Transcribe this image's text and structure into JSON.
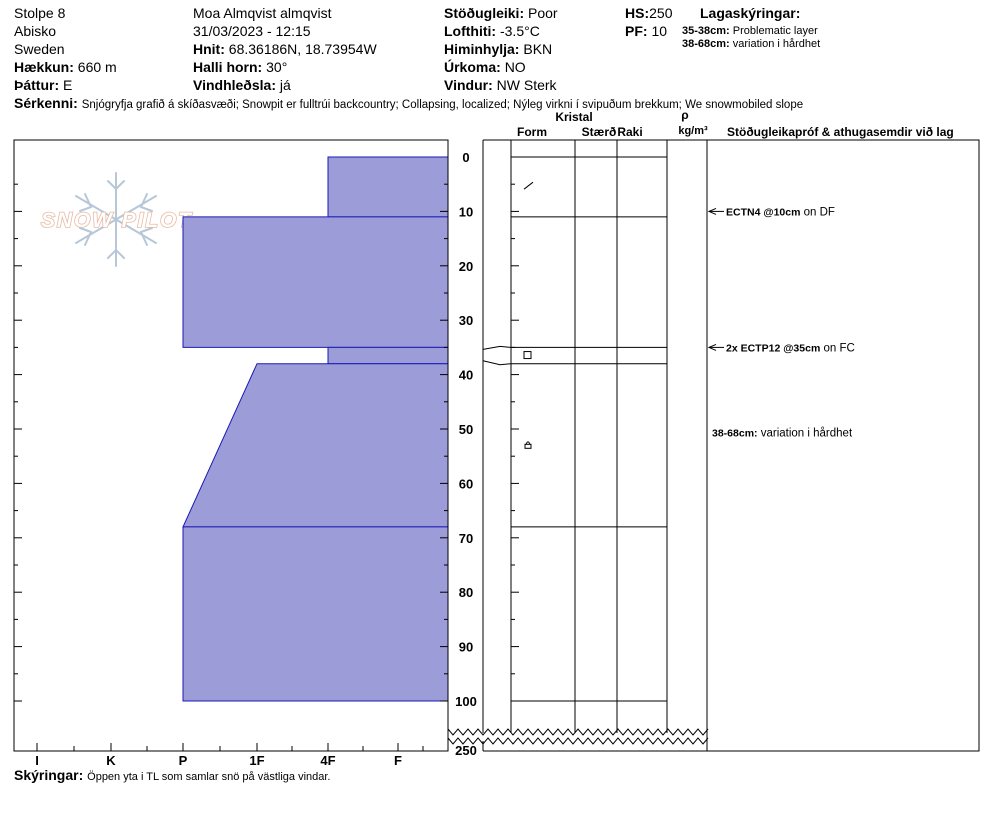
{
  "header": {
    "pit_name": "Stolpe 8",
    "area": "Abisko",
    "country": "Sweden",
    "elevation_label": "Hækkun:",
    "elevation_value": "660 m",
    "aspect_label": "Þáttur:",
    "aspect_value": "E",
    "observer": "Moa Almqvist almqvist",
    "datetime": "31/03/2023 - 12:15",
    "coords_label": "Hnit:",
    "coords_value": "68.36186N, 18.73954W",
    "slope_label": "Halli horn:",
    "slope_value": "30°",
    "wind_loading_label": "Vindhleðsla:",
    "wind_loading_value": "já",
    "stability_label": "Stöðugleiki:",
    "stability_value": "Poor",
    "air_temp_label": "Lofthiti:",
    "air_temp_value": "-3.5°C",
    "sky_label": "Himinhylja:",
    "sky_value": "BKN",
    "precip_label": "Úrkoma:",
    "precip_value": "NO",
    "wind_label": "Vindur:",
    "wind_value": "NW Sterk",
    "hs_label": "HS:",
    "hs_value": "250",
    "pf_label": "PF:",
    "pf_value": "10",
    "layer_notes_title": "Lagaskýringar:",
    "layer_notes": [
      {
        "range": "35-38cm:",
        "text": "Problematic layer"
      },
      {
        "range": "38-68cm:",
        "text": "variation i hårdhet"
      }
    ],
    "features_label": "Sérkenni:",
    "features_value": "Snjógryfja grafið á skíðasvæði; Snowpit er fulltrúi backcountry; Collapsing, localized; Nýleg virkni í svipuðum brekkum; We snowmobiled slope"
  },
  "logo_text": "SNOW PILOT",
  "columns": {
    "crystal": "Kristal",
    "form": "Form",
    "size": "Stærð",
    "moisture": "Raki",
    "rho": "ρ",
    "density_unit": "kg/m³",
    "stability_title": "Stöðugleikapróf & athugasemdir við lag"
  },
  "footer": {
    "notes_label": "Skýringar:",
    "notes_value": "Öppen yta i TL som samlar snö på västliga vindar."
  },
  "colors": {
    "layer_fill": "#9c9cd8",
    "layer_stroke": "#1a1ab4",
    "logo": "#e7b9a3",
    "snowflake": "#b6c7d7"
  },
  "icons": {
    "logo_graphic": "snowflake-icon",
    "test_pointer": "arrow-left-icon",
    "slope_break": "zigzag-icon"
  },
  "chart_data": {
    "type": "snow-profile",
    "y_axis": {
      "label": "",
      "unit": "cm",
      "ticks": [
        0,
        10,
        20,
        30,
        40,
        50,
        60,
        70,
        80,
        90,
        100
      ],
      "min": 0,
      "max": 100,
      "bottom_label": "250",
      "direction": "depth from surface"
    },
    "x_axis": {
      "label": "",
      "categories": [
        "I",
        "K",
        "P",
        "1F",
        "4F",
        "F"
      ],
      "direction": "hardness increases to the left"
    },
    "hardness_profile": [
      {
        "top": 0,
        "bottom": 11,
        "hardness_top": "4F",
        "hardness_bottom": "4F"
      },
      {
        "top": 11,
        "bottom": 35,
        "hardness_top": "P",
        "hardness_bottom": "P"
      },
      {
        "top": 35,
        "bottom": 38,
        "hardness_top": "4F",
        "hardness_bottom": "4F"
      },
      {
        "top": 38,
        "bottom": 68,
        "hardness_top": "1F-",
        "hardness_bottom": "P"
      },
      {
        "top": 68,
        "bottom": 100,
        "hardness_top": "P",
        "hardness_bottom": "P"
      }
    ],
    "layer_boundaries": [
      0,
      11,
      35,
      38,
      68,
      100
    ],
    "grain_symbols": [
      {
        "depth": 5,
        "symbol": "DF"
      },
      {
        "depth": 36.5,
        "symbol": "FC"
      },
      {
        "depth": 53,
        "symbol": "FCxr"
      }
    ],
    "stability_tests": [
      {
        "depth": 10,
        "bold": "ECTN4 @10cm",
        "text": " on DF"
      },
      {
        "depth": 35,
        "bold": "2x ECTP12 @35cm",
        "text": "  on FC"
      }
    ],
    "layer_comments": [
      {
        "depth": 53,
        "bold": "38-68cm:",
        "text": " variation i hårdhet"
      }
    ]
  }
}
